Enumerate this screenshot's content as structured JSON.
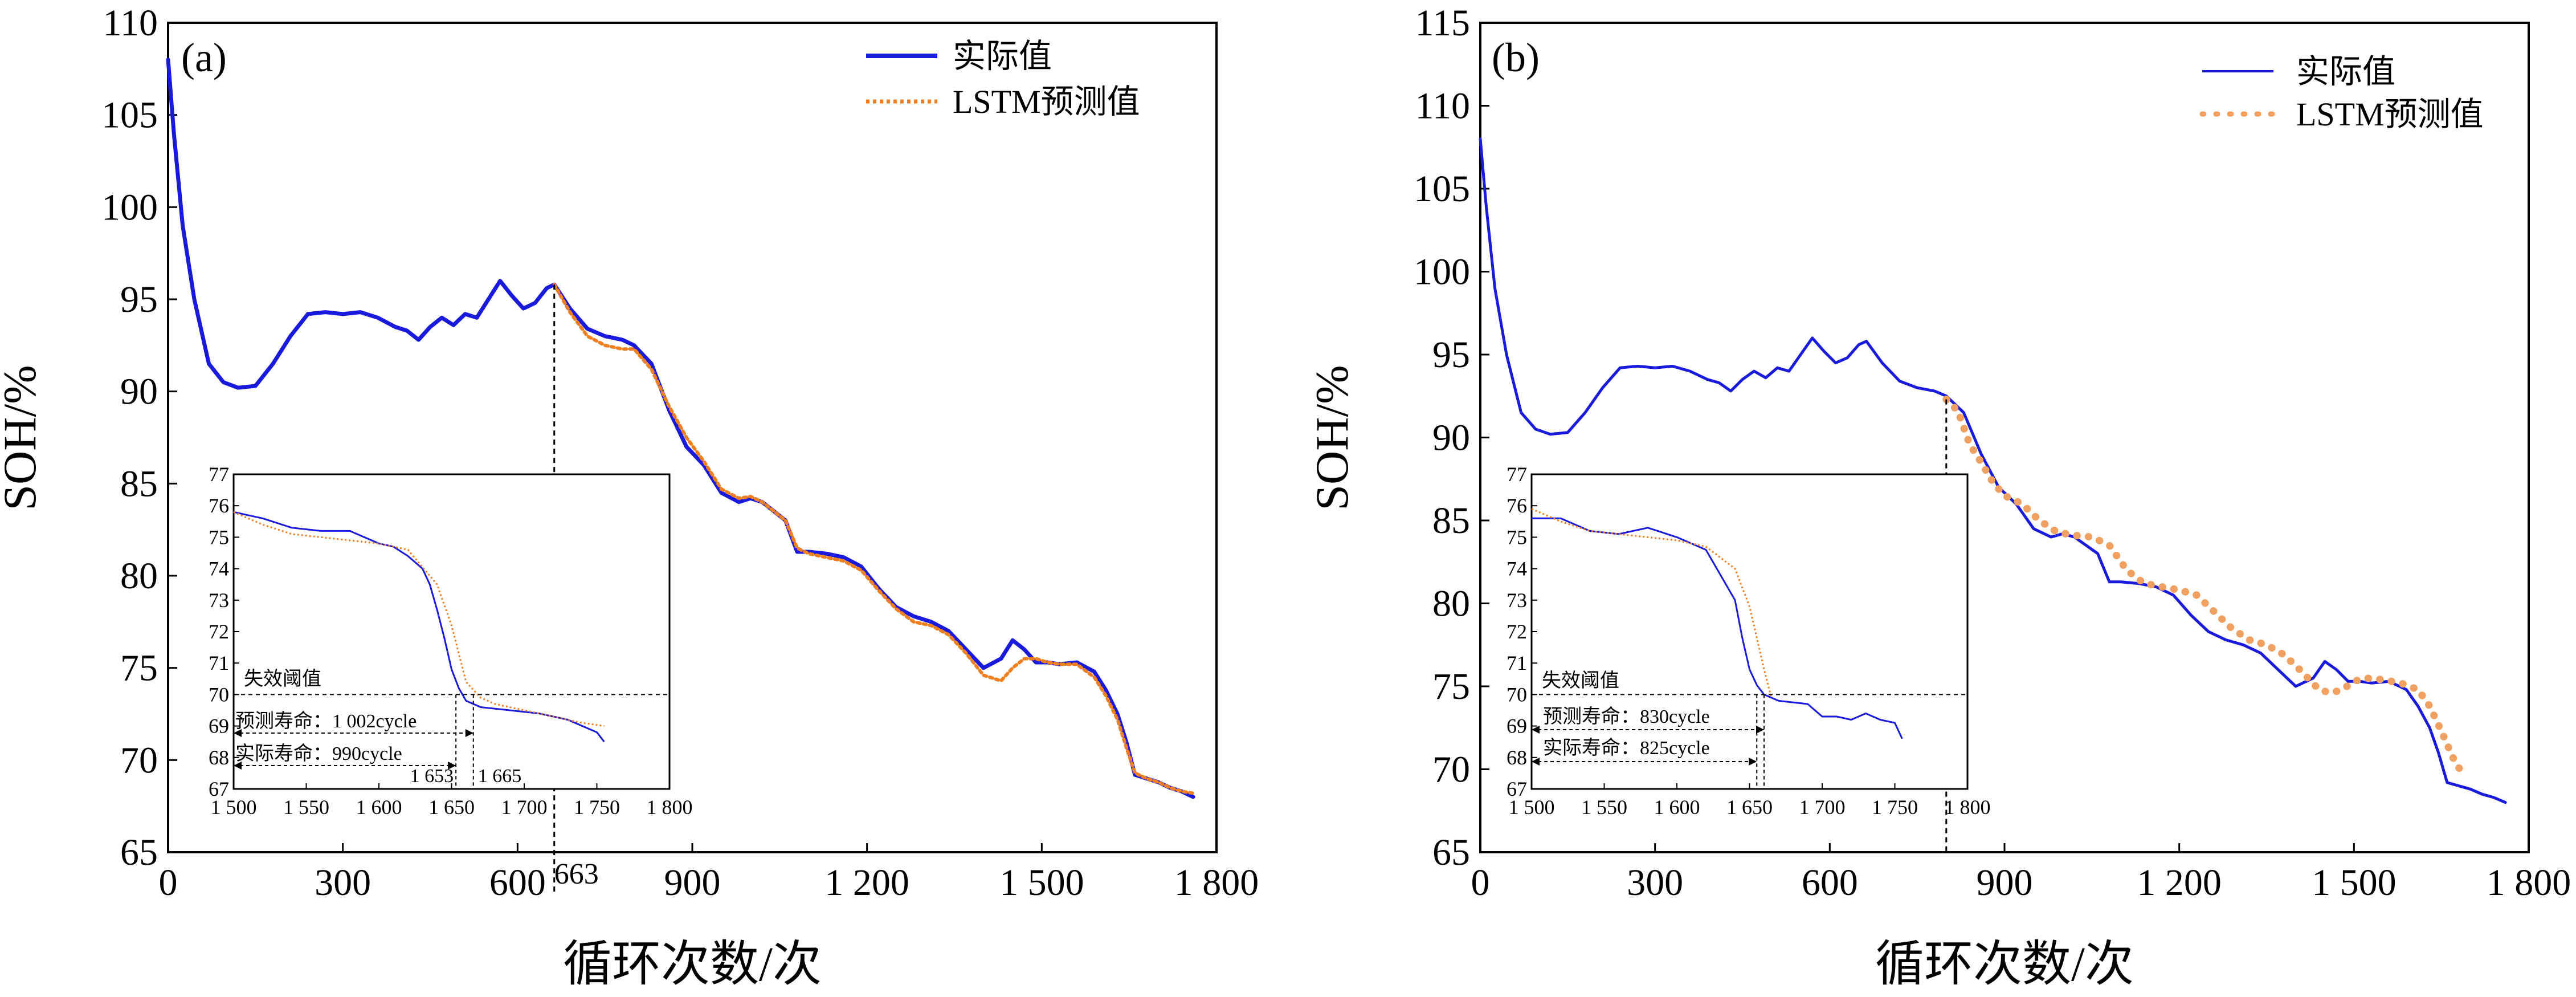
{
  "chart_data": [
    {
      "id": "a",
      "type": "line",
      "panel_label": "(a)",
      "xlabel": "循环次数/次",
      "ylabel": "SOH/%",
      "xlim": [
        0,
        1800
      ],
      "ylim": [
        65,
        110
      ],
      "xticks": [
        0,
        300,
        600,
        900,
        1200,
        1500,
        1800
      ],
      "xtick_labels": [
        "0",
        "300",
        "600",
        "900",
        "1 200",
        "1 500",
        "1 800"
      ],
      "yticks": [
        65,
        70,
        75,
        80,
        85,
        90,
        95,
        100,
        105,
        110
      ],
      "ytick_labels": [
        "65",
        "70",
        "75",
        "80",
        "85",
        "90",
        "95",
        "100",
        "105",
        "110"
      ],
      "legend": [
        "实际值",
        "LSTM预测值"
      ],
      "annotations": [
        {
          "x": 663,
          "label": "663"
        }
      ],
      "series": [
        {
          "name": "实际值",
          "color": "#1a1adf",
          "style": "solid",
          "x": [
            0,
            10,
            25,
            45,
            70,
            95,
            120,
            150,
            180,
            210,
            240,
            270,
            300,
            330,
            360,
            390,
            410,
            430,
            450,
            470,
            490,
            510,
            530,
            550,
            570,
            590,
            610,
            630,
            650,
            663,
            690,
            720,
            750,
            780,
            800,
            830,
            860,
            890,
            920,
            950,
            980,
            1000,
            1020,
            1040,
            1060,
            1080,
            1100,
            1130,
            1160,
            1190,
            1220,
            1250,
            1280,
            1310,
            1340,
            1370,
            1400,
            1430,
            1450,
            1470,
            1490,
            1510,
            1530,
            1560,
            1590,
            1610,
            1630,
            1645,
            1660,
            1680,
            1700,
            1720,
            1740,
            1760
          ],
          "y": [
            108,
            104,
            99,
            95,
            91.5,
            90.5,
            90.2,
            90.3,
            91.5,
            93,
            94.2,
            94.3,
            94.2,
            94.3,
            94,
            93.5,
            93.3,
            92.8,
            93.5,
            94,
            93.6,
            94.2,
            94,
            95,
            96,
            95.2,
            94.5,
            94.8,
            95.6,
            95.8,
            94.5,
            93.4,
            93,
            92.8,
            92.5,
            91.5,
            89,
            87,
            86,
            84.5,
            84,
            84.2,
            84,
            83.5,
            83,
            81.3,
            81.3,
            81.2,
            81,
            80.5,
            79.3,
            78.3,
            77.8,
            77.5,
            77,
            76,
            75,
            75.5,
            76.5,
            76,
            75.3,
            75.3,
            75.2,
            75.3,
            74.8,
            73.8,
            72.5,
            71,
            69.2,
            69,
            68.8,
            68.5,
            68.3,
            68
          ]
        },
        {
          "name": "LSTM预测值",
          "color": "#f07f1f",
          "style": "dotted",
          "x": [
            663,
            690,
            720,
            750,
            780,
            800,
            830,
            860,
            890,
            920,
            950,
            980,
            1000,
            1020,
            1040,
            1060,
            1080,
            1100,
            1130,
            1160,
            1190,
            1220,
            1250,
            1280,
            1310,
            1340,
            1370,
            1400,
            1430,
            1450,
            1470,
            1490,
            1510,
            1530,
            1560,
            1590,
            1610,
            1630,
            1645,
            1660,
            1680,
            1700,
            1720,
            1740,
            1760
          ],
          "y": [
            95.8,
            94.3,
            93,
            92.5,
            92.3,
            92.3,
            91.2,
            89.2,
            87.5,
            86.2,
            84.7,
            84.2,
            84.3,
            84,
            83.5,
            83,
            81.5,
            81.2,
            81,
            80.8,
            80.3,
            79.2,
            78.2,
            77.5,
            77.3,
            76.8,
            75.8,
            74.6,
            74.3,
            75,
            75.5,
            75.5,
            75.3,
            75.2,
            75.2,
            74.5,
            73.5,
            72.2,
            70.7,
            69.3,
            69,
            68.8,
            68.5,
            68.3,
            68.2
          ]
        }
      ],
      "inset": {
        "xlim": [
          1500,
          1800
        ],
        "ylim": [
          67,
          77
        ],
        "xtick_labels": [
          "1 500",
          "1 550",
          "1 600",
          "1 650",
          "1 700",
          "1 750",
          "1 800"
        ],
        "ytick_labels": [
          "67",
          "68",
          "69",
          "70",
          "71",
          "72",
          "73",
          "74",
          "75",
          "76",
          "77"
        ],
        "threshold": 70,
        "threshold_label": "失效阈值",
        "predicted_label": "预测寿命：1 002cycle",
        "actual_label": "实际寿命：990cycle",
        "predicted_x": 1665,
        "actual_x": 1653,
        "predicted_x_label": "1 665",
        "actual_x_label": "1 653",
        "series": [
          {
            "name": "实际值",
            "color": "#1a1adf",
            "x": [
              1500,
              1510,
              1520,
              1540,
              1560,
              1580,
              1600,
              1610,
              1620,
              1630,
              1635,
              1640,
              1645,
              1650,
              1655,
              1660,
              1670,
              1690,
              1710,
              1720,
              1730,
              1740,
              1750,
              1755
            ],
            "y": [
              75.8,
              75.7,
              75.6,
              75.3,
              75.2,
              75.2,
              74.8,
              74.7,
              74.4,
              74,
              73.5,
              72.7,
              71.8,
              70.8,
              70.2,
              69.8,
              69.6,
              69.5,
              69.4,
              69.3,
              69.2,
              69.0,
              68.8,
              68.5
            ]
          },
          {
            "name": "LSTM预测值",
            "color": "#f07f1f",
            "x": [
              1500,
              1520,
              1540,
              1560,
              1580,
              1600,
              1620,
              1640,
              1650,
              1660,
              1670,
              1680,
              1700,
              1720,
              1740,
              1755
            ],
            "y": [
              75.8,
              75.4,
              75.1,
              75.0,
              74.9,
              74.8,
              74.6,
              73.5,
              72.2,
              70.4,
              69.9,
              69.7,
              69.5,
              69.3,
              69.1,
              69.0
            ]
          }
        ]
      }
    },
    {
      "id": "b",
      "type": "line",
      "panel_label": "(b)",
      "xlabel": "循环次数/次",
      "ylabel": "SOH/%",
      "xlim": [
        0,
        1800
      ],
      "ylim": [
        65,
        115
      ],
      "xticks": [
        0,
        300,
        600,
        900,
        1200,
        1500,
        1800
      ],
      "xtick_labels": [
        "0",
        "300",
        "600",
        "900",
        "1 200",
        "1 500",
        "1 800"
      ],
      "yticks": [
        65,
        70,
        75,
        80,
        85,
        90,
        95,
        100,
        105,
        110,
        115
      ],
      "ytick_labels": [
        "65",
        "70",
        "75",
        "80",
        "85",
        "90",
        "95",
        "100",
        "105",
        "110",
        "115"
      ],
      "legend": [
        "实际值",
        "LSTM预测值"
      ],
      "series": [
        {
          "name": "实际值",
          "color": "#1a1adf",
          "style": "solid",
          "x": [
            0,
            10,
            25,
            45,
            70,
            95,
            120,
            150,
            180,
            210,
            240,
            270,
            300,
            330,
            360,
            390,
            410,
            430,
            450,
            470,
            490,
            510,
            530,
            550,
            570,
            590,
            610,
            630,
            650,
            663,
            690,
            720,
            750,
            780,
            800,
            830,
            860,
            890,
            920,
            950,
            980,
            1000,
            1020,
            1040,
            1060,
            1080,
            1100,
            1130,
            1160,
            1190,
            1220,
            1250,
            1280,
            1310,
            1340,
            1370,
            1400,
            1430,
            1450,
            1470,
            1490,
            1510,
            1530,
            1560,
            1590,
            1610,
            1630,
            1645,
            1660,
            1680,
            1700,
            1720,
            1740,
            1760
          ],
          "y": [
            108,
            104,
            99,
            95,
            91.5,
            90.5,
            90.2,
            90.3,
            91.5,
            93,
            94.2,
            94.3,
            94.2,
            94.3,
            94,
            93.5,
            93.3,
            92.8,
            93.5,
            94,
            93.6,
            94.2,
            94,
            95,
            96,
            95.2,
            94.5,
            94.8,
            95.6,
            95.8,
            94.5,
            93.4,
            93,
            92.8,
            92.5,
            91.5,
            89,
            87,
            86,
            84.5,
            84,
            84.2,
            84,
            83.5,
            83,
            81.3,
            81.3,
            81.2,
            81,
            80.5,
            79.3,
            78.3,
            77.8,
            77.5,
            77,
            76,
            75,
            75.5,
            76.5,
            76,
            75.3,
            75.3,
            75.2,
            75.3,
            74.8,
            73.8,
            72.5,
            71,
            69.2,
            69,
            68.8,
            68.5,
            68.3,
            68
          ]
        },
        {
          "name": "LSTM预测值",
          "color": "#f0a060",
          "style": "dotted",
          "x": [
            800,
            820,
            840,
            860,
            880,
            900,
            930,
            960,
            990,
            1020,
            1050,
            1080,
            1110,
            1140,
            1170,
            1200,
            1230,
            1260,
            1290,
            1320,
            1350,
            1380,
            1410,
            1440,
            1460,
            1480,
            1500,
            1520,
            1550,
            1580,
            1610,
            1630,
            1650,
            1670,
            1685
          ],
          "y": [
            92.3,
            91.6,
            89.6,
            88.5,
            87.3,
            86.5,
            86,
            85,
            84.3,
            84.1,
            84,
            83.5,
            82,
            81.2,
            81.0,
            80.8,
            80.5,
            79.5,
            78.5,
            77.8,
            77.5,
            76.9,
            75.9,
            74.8,
            74.6,
            74.8,
            75.3,
            75.5,
            75.4,
            75.2,
            74.8,
            73.8,
            72.3,
            70.7,
            69.8
          ]
        }
      ],
      "inset": {
        "xlim": [
          1500,
          1800
        ],
        "ylim": [
          67,
          77
        ],
        "xtick_labels": [
          "1 500",
          "1 550",
          "1 600",
          "1 650",
          "1 700",
          "1 750",
          "1 800"
        ],
        "ytick_labels": [
          "67",
          "68",
          "69",
          "70",
          "71",
          "72",
          "73",
          "74",
          "75",
          "76",
          "77"
        ],
        "threshold": 70,
        "threshold_label": "失效阈值",
        "predicted_label": "预测寿命：830cycle",
        "actual_label": "实际寿命：825cycle",
        "predicted_x": 1660,
        "actual_x": 1655,
        "series": [
          {
            "name": "实际值",
            "color": "#1a1adf",
            "x": [
              1500,
              1520,
              1540,
              1560,
              1580,
              1600,
              1620,
              1630,
              1640,
              1645,
              1650,
              1655,
              1660,
              1670,
              1690,
              1700,
              1710,
              1720,
              1730,
              1740,
              1750,
              1755
            ],
            "y": [
              75.6,
              75.6,
              75.2,
              75.1,
              75.3,
              75.0,
              74.6,
              73.8,
              73.0,
              71.8,
              70.8,
              70.3,
              70.0,
              69.8,
              69.7,
              69.3,
              69.3,
              69.2,
              69.4,
              69.2,
              69.1,
              68.6
            ]
          },
          {
            "name": "LSTM预测值",
            "color": "#f07f1f",
            "x": [
              1500,
              1520,
              1540,
              1560,
              1580,
              1600,
              1620,
              1640,
              1650,
              1655,
              1660,
              1665
            ],
            "y": [
              75.9,
              75.5,
              75.2,
              75.1,
              75.0,
              74.9,
              74.7,
              74.0,
              72.8,
              71.8,
              70.8,
              69.9
            ]
          }
        ]
      }
    }
  ]
}
